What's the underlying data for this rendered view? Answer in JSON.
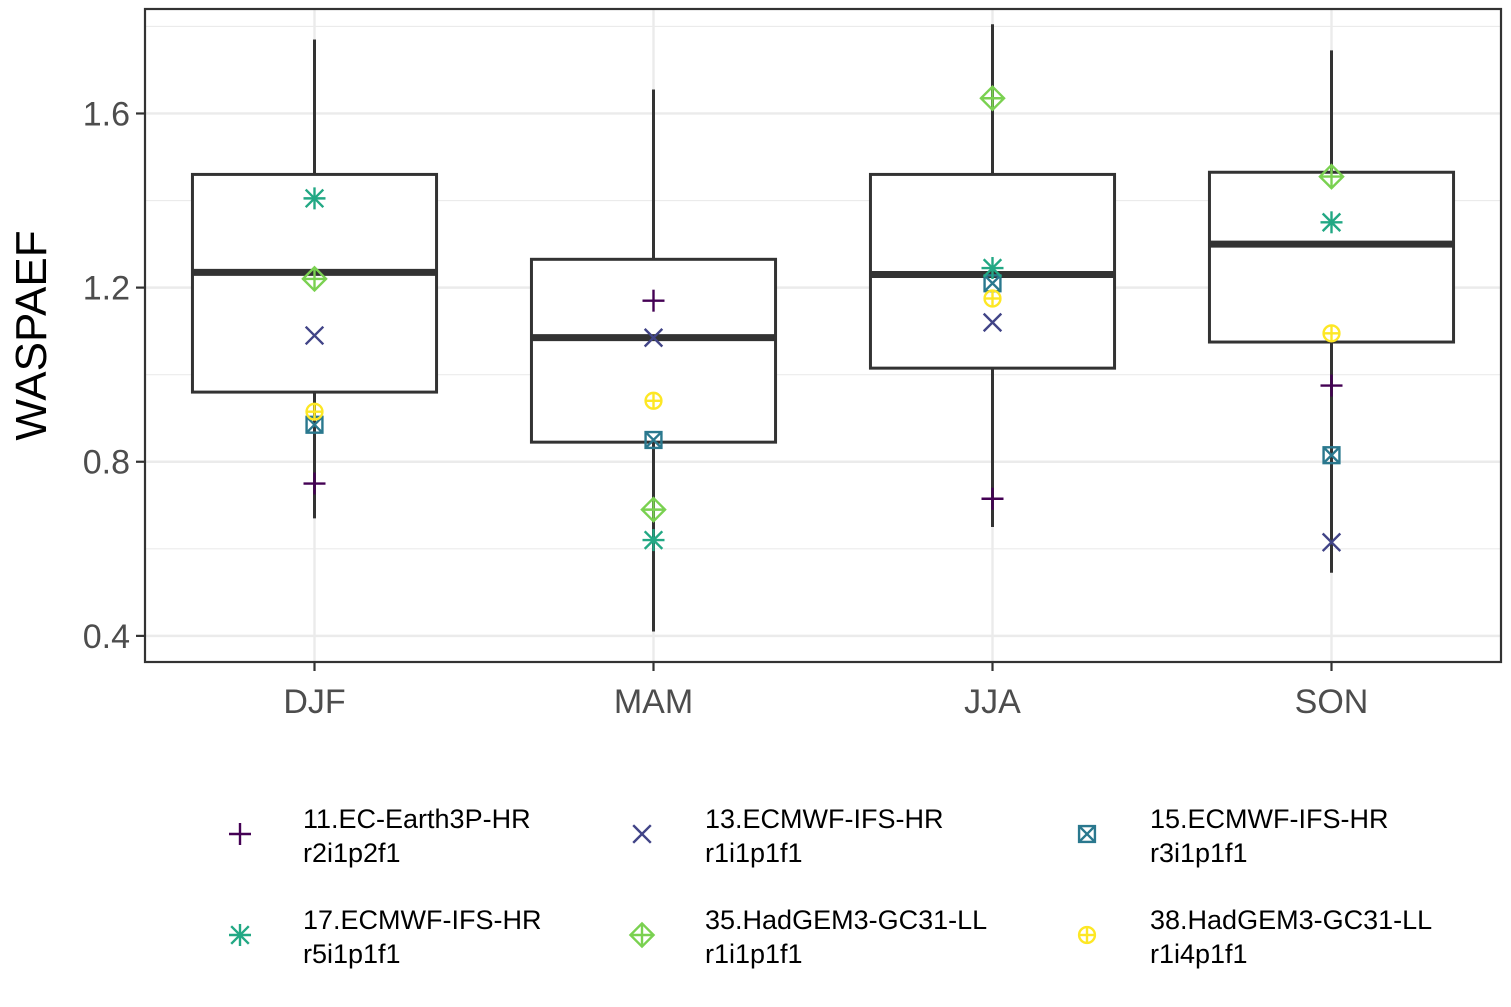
{
  "chart_data": {
    "type": "boxplot",
    "title": "",
    "xlabel": "",
    "ylabel": "WASPAEF",
    "ylim": [
      0.34,
      1.84
    ],
    "yticks": [
      0.4,
      0.8,
      1.2,
      1.6
    ],
    "grid": true,
    "legend_position": "bottom",
    "categories": [
      "DJF",
      "MAM",
      "JJA",
      "SON"
    ],
    "boxes": [
      {
        "category": "DJF",
        "whisker_low": 0.67,
        "q1": 0.96,
        "median": 1.235,
        "q3": 1.46,
        "whisker_high": 1.77
      },
      {
        "category": "MAM",
        "whisker_low": 0.41,
        "q1": 0.845,
        "median": 1.085,
        "q3": 1.265,
        "whisker_high": 1.655
      },
      {
        "category": "JJA",
        "whisker_low": 0.65,
        "q1": 1.015,
        "median": 1.23,
        "q3": 1.46,
        "whisker_high": 1.805
      },
      {
        "category": "SON",
        "whisker_low": 0.545,
        "q1": 1.075,
        "median": 1.3,
        "q3": 1.465,
        "whisker_high": 1.745
      }
    ],
    "series": [
      {
        "name": "11.EC-Earth3P-HR",
        "member": "r2i1p2f1",
        "shape": "plus",
        "color": "#440154",
        "values": [
          0.75,
          1.17,
          0.715,
          0.975
        ]
      },
      {
        "name": "13.ECMWF-IFS-HR",
        "member": "r1i1p1f1",
        "shape": "cross",
        "color": "#414487",
        "values": [
          1.09,
          1.085,
          1.12,
          0.615
        ]
      },
      {
        "name": "15.ECMWF-IFS-HR",
        "member": "r3i1p1f1",
        "shape": "square-cross",
        "color": "#2A788E",
        "values": [
          0.885,
          0.85,
          1.21,
          0.815
        ]
      },
      {
        "name": "17.ECMWF-IFS-HR",
        "member": "r5i1p1f1",
        "shape": "asterisk",
        "color": "#22A884",
        "values": [
          1.405,
          0.62,
          1.245,
          1.35
        ]
      },
      {
        "name": "35.HadGEM3-GC31-LL",
        "member": "r1i1p1f1",
        "shape": "diamond-plus",
        "color": "#7AD151",
        "values": [
          1.22,
          0.69,
          1.635,
          1.455
        ]
      },
      {
        "name": "38.HadGEM3-GC31-LL",
        "member": "r1i4p1f1",
        "shape": "circle-plus",
        "color": "#FDE725",
        "values": [
          0.915,
          0.94,
          1.175,
          1.095
        ]
      }
    ]
  }
}
